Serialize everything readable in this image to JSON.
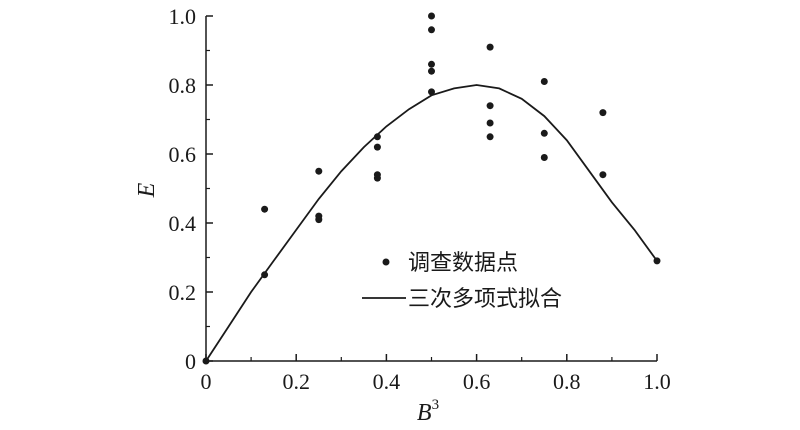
{
  "chart_data": {
    "type": "scatter",
    "xlabel": "B",
    "xlabel_superscript": "3",
    "ylabel": "E",
    "xlim": [
      0,
      1.0
    ],
    "ylim": [
      0,
      1.0
    ],
    "x_ticks": [
      "0",
      "0.2",
      "0.4",
      "0.6",
      "0.8",
      "1.0"
    ],
    "y_ticks": [
      "0",
      "0.2",
      "0.4",
      "0.6",
      "0.8",
      "1.0"
    ],
    "grid": false,
    "legend_position": "center-right",
    "colors": {
      "points": "#1a1a1a",
      "fit_line": "#1a1a1a"
    },
    "series": [
      {
        "name": "调查数据点",
        "kind": "scatter",
        "points": [
          [
            0.0,
            0.0
          ],
          [
            0.13,
            0.25
          ],
          [
            0.13,
            0.44
          ],
          [
            0.25,
            0.41
          ],
          [
            0.25,
            0.42
          ],
          [
            0.25,
            0.55
          ],
          [
            0.38,
            0.53
          ],
          [
            0.38,
            0.54
          ],
          [
            0.38,
            0.62
          ],
          [
            0.38,
            0.65
          ],
          [
            0.5,
            0.78
          ],
          [
            0.5,
            0.84
          ],
          [
            0.5,
            0.86
          ],
          [
            0.5,
            0.96
          ],
          [
            0.5,
            1.0
          ],
          [
            0.63,
            0.65
          ],
          [
            0.63,
            0.69
          ],
          [
            0.63,
            0.74
          ],
          [
            0.63,
            0.91
          ],
          [
            0.75,
            0.59
          ],
          [
            0.75,
            0.66
          ],
          [
            0.75,
            0.81
          ],
          [
            0.88,
            0.54
          ],
          [
            0.88,
            0.72
          ],
          [
            1.0,
            0.29
          ]
        ]
      },
      {
        "name": "三次多项式拟合",
        "kind": "line",
        "points": [
          [
            0.0,
            0.0
          ],
          [
            0.05,
            0.1
          ],
          [
            0.1,
            0.2
          ],
          [
            0.15,
            0.29
          ],
          [
            0.2,
            0.38
          ],
          [
            0.25,
            0.47
          ],
          [
            0.3,
            0.55
          ],
          [
            0.35,
            0.62
          ],
          [
            0.4,
            0.68
          ],
          [
            0.45,
            0.73
          ],
          [
            0.5,
            0.77
          ],
          [
            0.55,
            0.79
          ],
          [
            0.6,
            0.8
          ],
          [
            0.65,
            0.79
          ],
          [
            0.7,
            0.76
          ],
          [
            0.75,
            0.71
          ],
          [
            0.8,
            0.64
          ],
          [
            0.85,
            0.55
          ],
          [
            0.9,
            0.46
          ],
          [
            0.95,
            0.38
          ],
          [
            1.0,
            0.29
          ]
        ]
      }
    ]
  }
}
